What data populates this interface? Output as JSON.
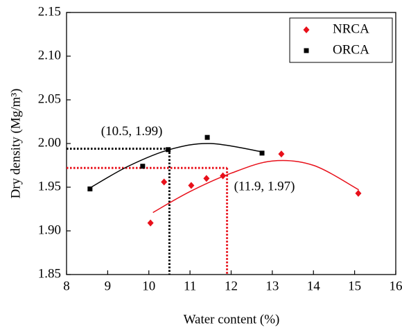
{
  "chart_data": {
    "type": "scatter",
    "xlabel": "Water content (%)",
    "ylabel": "Dry density (Mg/m³)",
    "xlim": [
      8,
      16
    ],
    "xticks": [
      8,
      9,
      10,
      11,
      12,
      13,
      14,
      15,
      16
    ],
    "ylim": [
      1.85,
      2.15
    ],
    "yticks": [
      1.85,
      {
        "value": 1.9,
        "label": "1.90"
      },
      1.95,
      {
        "value": 2.0,
        "label": "2.00"
      },
      2.05,
      {
        "value": 2.1,
        "label": "2.10"
      },
      2.15
    ],
    "legend": "upper-right",
    "series": [
      {
        "name": "NRCA",
        "color": "#e8101a",
        "marker": "diamond",
        "x": [
          10.04,
          10.37,
          11.03,
          11.4,
          11.8,
          13.22,
          15.09
        ],
        "values": [
          1.909,
          1.956,
          1.952,
          1.96,
          1.963,
          1.988,
          1.943
        ],
        "fit": {
          "x": [
            10.1,
            11,
            12,
            13,
            14,
            15.1
          ],
          "values": [
            1.921,
            1.945,
            1.966,
            1.98,
            1.975,
            1.947
          ]
        }
      },
      {
        "name": "ORCA",
        "color": "#000000",
        "marker": "square",
        "x": [
          8.57,
          9.85,
          10.47,
          11.42,
          12.75
        ],
        "values": [
          1.948,
          1.974,
          1.993,
          2.007,
          1.989
        ],
        "fit": {
          "x": [
            8.6,
            9.5,
            10.5,
            11.5,
            12.8
          ],
          "values": [
            1.95,
            1.974,
            1.993,
            2.0,
            1.99
          ]
        }
      }
    ],
    "annotations": [
      {
        "text": "(10.5, 1.99)",
        "x": 10.5,
        "y": 1.994,
        "color": "#000000",
        "side": "upper-left"
      },
      {
        "text": "(11.9, 1.97)",
        "x": 11.9,
        "y": 1.972,
        "color": "#e8101a",
        "side": "lower-right"
      }
    ]
  }
}
